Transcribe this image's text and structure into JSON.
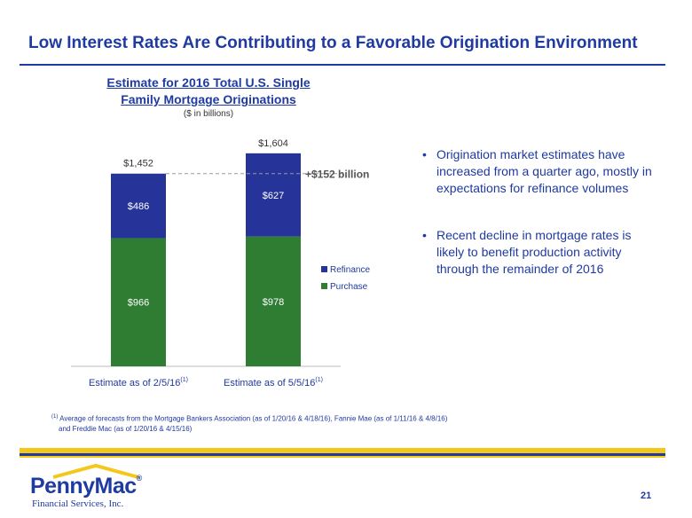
{
  "slide": {
    "title": "Low Interest Rates Are Contributing to a Favorable Origination Environment",
    "page_number": "21"
  },
  "chart_data": {
    "type": "bar",
    "stacked": true,
    "title": "Estimate for 2016 Total U.S. Single Family Mortgage Originations",
    "subtitle": "($ in billions)",
    "categories": [
      "Estimate as of 2/5/16",
      "Estimate as of 5/5/16"
    ],
    "category_footnote_marker": "(1)",
    "series": [
      {
        "name": "Purchase",
        "values": [
          966,
          978
        ],
        "labels": [
          "$966",
          "$978"
        ],
        "color": "#2e7d32"
      },
      {
        "name": "Refinance",
        "values": [
          486,
          627
        ],
        "labels": [
          "$486",
          "$627"
        ],
        "color": "#26349a"
      }
    ],
    "totals": [
      1452,
      1604
    ],
    "total_labels": [
      "$1,452",
      "$1,604"
    ],
    "annotation": "+$152 billion",
    "legend": {
      "position": "right",
      "order": [
        "Refinance",
        "Purchase"
      ]
    },
    "ylim": [
      0,
      1604
    ],
    "grid": false
  },
  "bullets": [
    "Origination market estimates have increased from a quarter ago, mostly in expectations for refinance volumes",
    "Recent decline in mortgage rates is likely to benefit production activity through the remainder of 2016"
  ],
  "bullet_glyph": "•",
  "footnote": {
    "marker": "(1)",
    "line1": "Average of forecasts from the Mortgage Bankers Association (as of 1/20/16 & 4/18/16), Fannie Mae (as of 1/11/16 & 4/8/16)",
    "line2": "and Freddie Mac (as of 1/20/16 & 4/15/16)"
  },
  "logo": {
    "brand": "PennyMac",
    "reg": "®",
    "subtitle": "Financial Services, Inc."
  },
  "colors": {
    "brand_blue": "#1f3aa0",
    "gold": "#f4c81a",
    "purchase": "#2e7d32",
    "refinance": "#26349a"
  }
}
